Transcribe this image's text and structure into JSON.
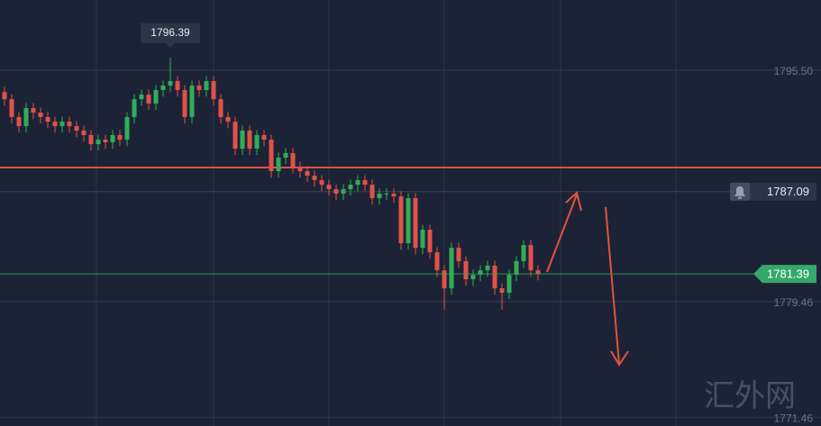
{
  "chart_data": {
    "type": "candlestick",
    "ylim": [
      1770.85,
      1800.37
    ],
    "yticks": [
      {
        "value": 1795.5,
        "label": "1795.50"
      },
      1779.46,
      1771.46
    ],
    "up_color": "#2fae5a",
    "down_color": "#e0524a",
    "high_label": 1796.39,
    "alert": 1787.09,
    "last_price": 1781.39,
    "red_line": 1788.76,
    "watermark": "汇外网",
    "open": [
      1794.0,
      1793.5,
      1792.26,
      1791.63,
      1792.88,
      1792.57,
      1792.26,
      1791.94,
      1791.63,
      1791.94,
      1791.63,
      1791.32,
      1791.01,
      1790.38,
      1790.69,
      1790.51,
      1791.01,
      1790.69,
      1792.26,
      1793.5,
      1793.82,
      1793.19,
      1794.13,
      1794.44,
      1794.75,
      1794.13,
      1792.26,
      1794.44,
      1794.13,
      1794.75,
      1793.5,
      1792.26,
      1791.94,
      1790.07,
      1791.32,
      1790.07,
      1791.01,
      1790.69,
      1788.51,
      1789.45,
      1789.76,
      1788.82,
      1788.51,
      1788.2,
      1787.89,
      1787.57,
      1787.26,
      1786.95,
      1787.26,
      1787.57,
      1787.89,
      1787.57,
      1786.64,
      1786.95,
      1786.95,
      1786.76,
      1783.52,
      1786.64,
      1783.2,
      1784.45,
      1782.89,
      1781.64,
      1780.39,
      1783.2,
      1782.27,
      1781.02,
      1781.33,
      1781.64,
      1781.96,
      1780.39,
      1780.08,
      1781.33,
      1782.27,
      1783.39,
      1781.64
    ],
    "high": [
      1794.35,
      1793.85,
      1792.61,
      1793.23,
      1793.23,
      1792.92,
      1792.61,
      1792.29,
      1792.29,
      1792.29,
      1791.98,
      1791.67,
      1791.36,
      1791.04,
      1791.04,
      1791.36,
      1791.36,
      1792.61,
      1793.85,
      1794.17,
      1794.17,
      1794.48,
      1794.79,
      1796.39,
      1795.1,
      1794.48,
      1794.79,
      1794.79,
      1795.1,
      1795.1,
      1793.85,
      1792.61,
      1792.29,
      1791.67,
      1791.67,
      1791.36,
      1791.36,
      1791.04,
      1789.8,
      1790.11,
      1790.11,
      1789.17,
      1788.86,
      1788.55,
      1788.24,
      1787.92,
      1787.61,
      1787.61,
      1787.92,
      1788.24,
      1788.24,
      1787.92,
      1787.3,
      1787.3,
      1787.3,
      1787.11,
      1786.99,
      1786.99,
      1784.8,
      1784.8,
      1783.24,
      1781.99,
      1783.55,
      1783.55,
      1782.62,
      1781.68,
      1781.99,
      1782.31,
      1782.31,
      1780.74,
      1781.68,
      1782.62,
      1783.74,
      1783.74,
      1781.99
    ],
    "low": [
      1793.05,
      1791.81,
      1791.18,
      1791.18,
      1792.12,
      1791.81,
      1791.49,
      1791.18,
      1791.18,
      1791.18,
      1790.87,
      1790.56,
      1789.93,
      1789.93,
      1790.06,
      1790.06,
      1790.24,
      1790.24,
      1791.81,
      1793.05,
      1792.74,
      1792.74,
      1793.68,
      1793.99,
      1793.68,
      1791.81,
      1791.81,
      1793.68,
      1793.68,
      1793.05,
      1791.81,
      1791.49,
      1789.62,
      1789.62,
      1789.62,
      1789.62,
      1790.24,
      1788.06,
      1788.06,
      1789.0,
      1788.37,
      1788.06,
      1787.75,
      1787.44,
      1787.12,
      1786.81,
      1786.5,
      1786.5,
      1786.81,
      1787.12,
      1787.12,
      1786.19,
      1786.19,
      1786.5,
      1786.31,
      1783.07,
      1783.07,
      1782.75,
      1782.75,
      1782.44,
      1781.19,
      1778.9,
      1779.94,
      1781.82,
      1780.57,
      1780.57,
      1780.88,
      1781.19,
      1779.94,
      1778.9,
      1779.63,
      1780.88,
      1781.82,
      1781.19,
      1780.94
    ],
    "close": [
      1793.5,
      1792.26,
      1791.63,
      1792.88,
      1792.57,
      1792.26,
      1791.94,
      1791.63,
      1791.94,
      1791.63,
      1791.32,
      1791.01,
      1790.38,
      1790.69,
      1790.51,
      1791.01,
      1790.69,
      1792.26,
      1793.5,
      1793.82,
      1793.19,
      1794.13,
      1794.44,
      1794.75,
      1794.13,
      1792.26,
      1794.44,
      1794.13,
      1794.75,
      1793.5,
      1792.26,
      1791.94,
      1790.07,
      1791.32,
      1790.07,
      1791.01,
      1790.69,
      1788.51,
      1789.45,
      1789.76,
      1788.82,
      1788.51,
      1788.2,
      1787.89,
      1787.57,
      1787.26,
      1786.95,
      1787.26,
      1787.57,
      1787.89,
      1787.57,
      1786.64,
      1786.95,
      1786.95,
      1786.76,
      1783.52,
      1786.64,
      1783.2,
      1784.45,
      1782.89,
      1781.64,
      1780.39,
      1783.2,
      1782.27,
      1781.02,
      1781.33,
      1781.64,
      1781.96,
      1780.39,
      1780.08,
      1781.33,
      1782.27,
      1783.39,
      1781.64,
      1781.39
    ]
  }
}
